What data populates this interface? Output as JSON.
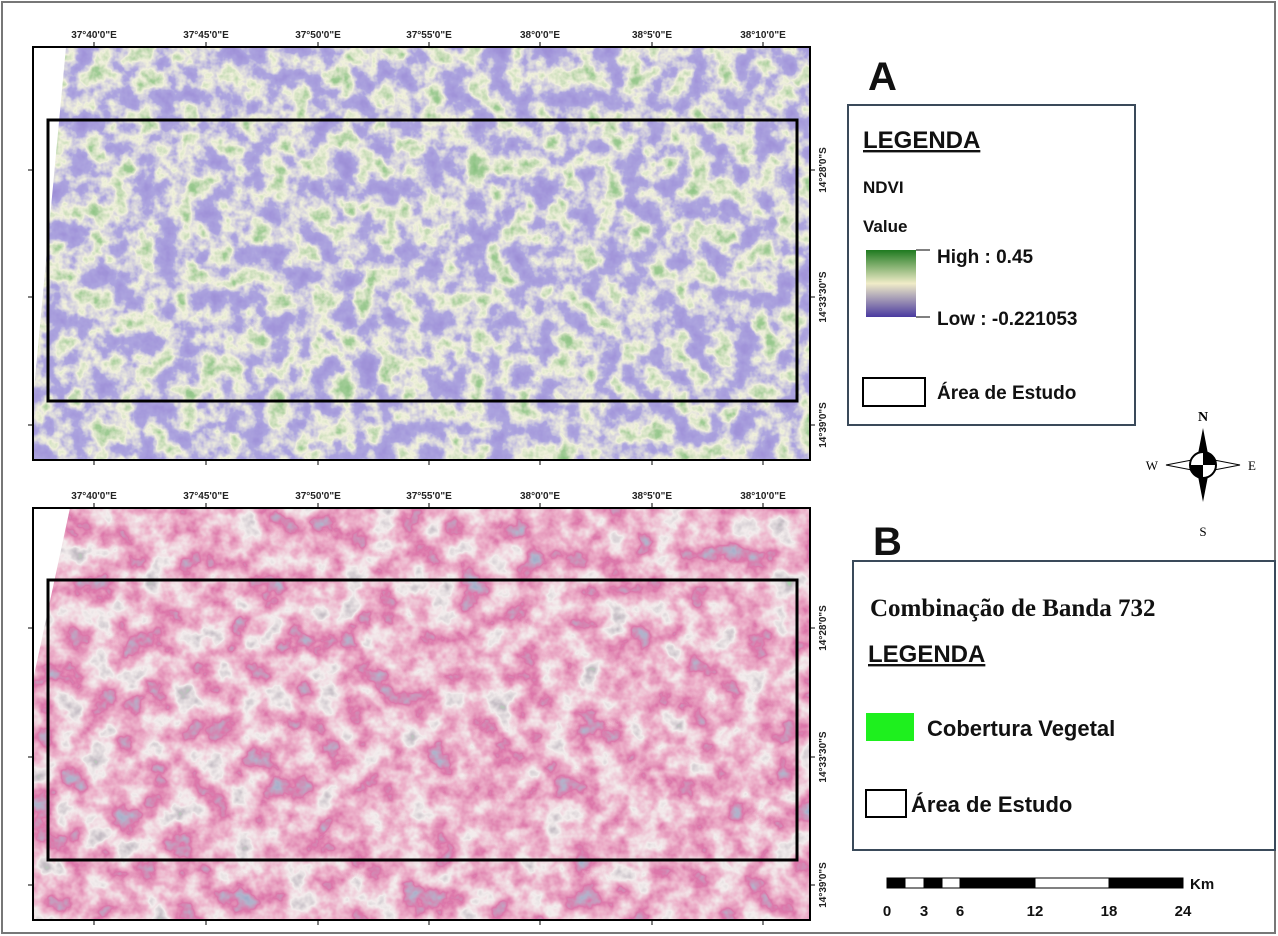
{
  "map_a": {
    "label": "A",
    "top_labels": [
      "37°40'0\"E",
      "37°45'0\"E",
      "37°50'0\"E",
      "37°55'0\"E",
      "38°0'0\"E",
      "38°5'0\"E",
      "38°10'0\"E"
    ],
    "right_labels": [
      "14°28'0\"S",
      "14°33'30\"S",
      "14°39'0\"S"
    ],
    "legend": {
      "title": "LEGENDA",
      "layer": "NDVI",
      "field": "Value",
      "high": "High : 0.45",
      "low": "Low : -0.221053",
      "study_area": "Área de Estudo"
    }
  },
  "map_b": {
    "label": "B",
    "top_labels": [
      "37°40'0\"E",
      "37°45'0\"E",
      "37°50'0\"E",
      "37°55'0\"E",
      "38°0'0\"E",
      "38°5'0\"E",
      "38°10'0\"E"
    ],
    "right_labels": [
      "14°28'0\"S",
      "14°33'30\"S",
      "14°39'0\"S"
    ],
    "legend": {
      "heading": "Combinação de Banda 732",
      "title": "LEGENDA",
      "vegetation": "Cobertura Vegetal",
      "study_area": "Área de Estudo"
    }
  },
  "compass": {
    "n": "N",
    "s": "S",
    "w": "W",
    "e": "E"
  },
  "scale_bar": {
    "unit": "Km",
    "labels": [
      0,
      3,
      6,
      12,
      18,
      24
    ]
  }
}
